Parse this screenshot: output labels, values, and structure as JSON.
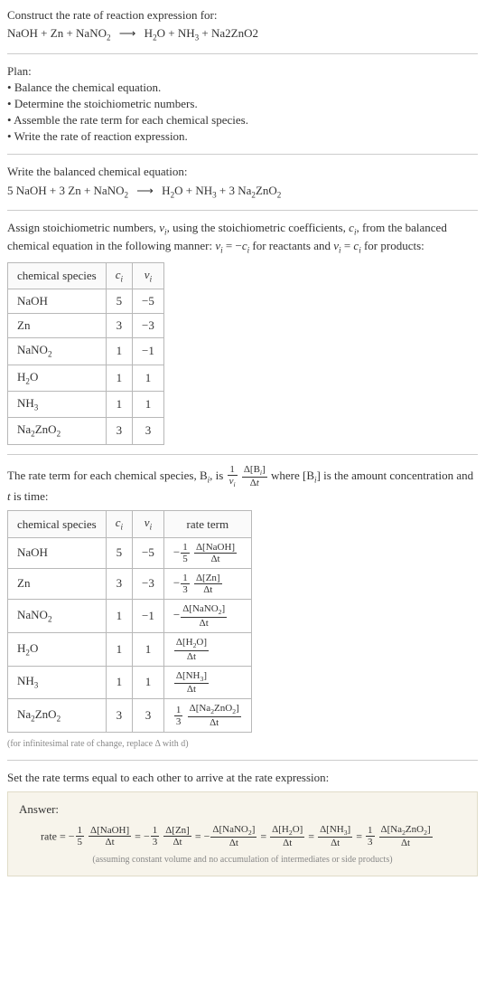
{
  "header": {
    "construct": "Construct the rate of reaction expression for:",
    "equation_lhs": "NaOH + Zn + NaNO",
    "equation_lhs_sub": "2",
    "equation_rhs1": "H",
    "equation_rhs1_sub": "2",
    "equation_rhs2": "O + NH",
    "equation_rhs2_sub": "3",
    "equation_rhs3": " + Na2ZnO2"
  },
  "plan": {
    "title": "Plan:",
    "items": [
      "Balance the chemical equation.",
      "Determine the stoichiometric numbers.",
      "Assemble the rate term for each chemical species.",
      "Write the rate of reaction expression."
    ]
  },
  "balanced": {
    "title": "Write the balanced chemical equation:",
    "lhs": "5 NaOH + 3 Zn + NaNO",
    "lhs_sub": "2",
    "rhs": "H",
    "rhs_sub1": "2",
    "rhs2": "O + NH",
    "rhs_sub2": "3",
    "rhs3": " + 3 Na",
    "rhs_sub3": "2",
    "rhs4": "ZnO",
    "rhs_sub4": "2"
  },
  "assign": {
    "text1": "Assign stoichiometric numbers, ",
    "nu": "ν",
    "sub_i": "i",
    "text2": ", using the stoichiometric coefficients, ",
    "c": "c",
    "text3": ", from the balanced chemical equation in the following manner: ",
    "eq1": " = −",
    "text4": " for reactants and ",
    "eq2": " = ",
    "text5": " for products:"
  },
  "table1": {
    "headers": [
      "chemical species",
      "cᵢ",
      "νᵢ"
    ],
    "rows": [
      [
        "NaOH",
        "5",
        "−5"
      ],
      [
        "Zn",
        "3",
        "−3"
      ],
      [
        "NaNO₂",
        "1",
        "−1"
      ],
      [
        "H₂O",
        "1",
        "1"
      ],
      [
        "NH₃",
        "1",
        "1"
      ],
      [
        "Na₂ZnO₂",
        "3",
        "3"
      ]
    ]
  },
  "rate_term": {
    "text1": "The rate term for each chemical species, B",
    "sub_i": "i",
    "text2": ", is ",
    "text3": " where [B",
    "text4": "] is the amount concentration and ",
    "t": "t",
    "text5": " is time:"
  },
  "table2": {
    "headers": [
      "chemical species",
      "cᵢ",
      "νᵢ",
      "rate term"
    ],
    "rows": [
      {
        "species": "NaOH",
        "c": "5",
        "nu": "−5",
        "neg": "−",
        "coef_num": "1",
        "coef_den": "5",
        "delta": "Δ[NaOH]"
      },
      {
        "species": "Zn",
        "c": "3",
        "nu": "−3",
        "neg": "−",
        "coef_num": "1",
        "coef_den": "3",
        "delta": "Δ[Zn]"
      },
      {
        "species": "NaNO₂",
        "c": "1",
        "nu": "−1",
        "neg": "−",
        "coef_num": "",
        "coef_den": "",
        "delta": "Δ[NaNO₂]"
      },
      {
        "species": "H₂O",
        "c": "1",
        "nu": "1",
        "neg": "",
        "coef_num": "",
        "coef_den": "",
        "delta": "Δ[H₂O]"
      },
      {
        "species": "NH₃",
        "c": "1",
        "nu": "1",
        "neg": "",
        "coef_num": "",
        "coef_den": "",
        "delta": "Δ[NH₃]"
      },
      {
        "species": "Na₂ZnO₂",
        "c": "3",
        "nu": "3",
        "neg": "",
        "coef_num": "1",
        "coef_den": "3",
        "delta": "Δ[Na₂ZnO₂]"
      }
    ],
    "dt": "Δt"
  },
  "infinitesimal_note": "(for infinitesimal rate of change, replace Δ with d)",
  "set_equal": "Set the rate terms equal to each other to arrive at the rate expression:",
  "answer": {
    "title": "Answer:",
    "rate_label": "rate = ",
    "terms": [
      {
        "neg": "−",
        "coef_num": "1",
        "coef_den": "5",
        "delta": "Δ[NaOH]"
      },
      {
        "neg": "−",
        "coef_num": "1",
        "coef_den": "3",
        "delta": "Δ[Zn]"
      },
      {
        "neg": "−",
        "coef_num": "",
        "coef_den": "",
        "delta": "Δ[NaNO₂]"
      },
      {
        "neg": "",
        "coef_num": "",
        "coef_den": "",
        "delta": "Δ[H₂O]"
      },
      {
        "neg": "",
        "coef_num": "",
        "coef_den": "",
        "delta": "Δ[NH₃]"
      },
      {
        "neg": "",
        "coef_num": "1",
        "coef_den": "3",
        "delta": "Δ[Na₂ZnO₂]"
      }
    ],
    "dt": "Δt",
    "note": "(assuming constant volume and no accumulation of intermediates or side products)"
  },
  "style": {
    "background": "#ffffff",
    "text_color": "#333333",
    "border_color": "#b8b8b8",
    "answer_bg": "#f7f4eb",
    "answer_border": "#e0dcc8",
    "note_color": "#888888",
    "hr_color": "#cccccc",
    "base_fontsize": 13,
    "small_fontsize": 10
  }
}
